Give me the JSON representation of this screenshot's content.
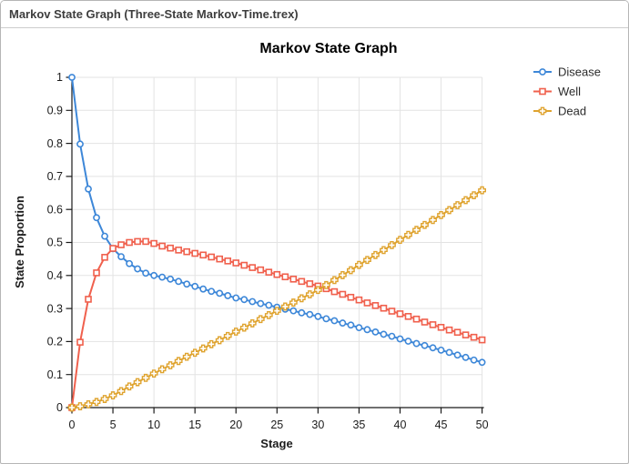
{
  "window": {
    "title": "Markov State Graph (Three-State Markov-Time.trex)"
  },
  "colors": {
    "disease": "#3d87d8",
    "well": "#f0604d",
    "dead": "#dfa32e",
    "grid": "#e3e3e3",
    "axis": "#1a1a1a"
  },
  "chart_data": {
    "type": "line",
    "title": "Markov State Graph",
    "xlabel": "Stage",
    "ylabel": "State Proportion",
    "xlim": [
      0,
      50
    ],
    "ylim": [
      0,
      1
    ],
    "grid": true,
    "legend_position": "right-top",
    "x_ticks": [
      "0",
      "5",
      "10",
      "15",
      "20",
      "25",
      "30",
      "35",
      "40",
      "45",
      "50"
    ],
    "y_ticks": [
      "0",
      "0.1",
      "0.2",
      "0.3",
      "0.4",
      "0.5",
      "0.6",
      "0.7",
      "0.8",
      "0.9",
      "1"
    ],
    "stages": [
      0,
      1,
      2,
      3,
      4,
      5,
      6,
      7,
      8,
      9,
      10,
      11,
      12,
      13,
      14,
      15,
      16,
      17,
      18,
      19,
      20,
      21,
      22,
      23,
      24,
      25,
      26,
      27,
      28,
      29,
      30,
      31,
      32,
      33,
      34,
      35,
      36,
      37,
      38,
      39,
      40,
      41,
      42,
      43,
      44,
      45,
      46,
      47,
      48,
      49,
      50
    ],
    "series": [
      {
        "name": "Disease",
        "color": "#3d87d8",
        "marker": "circle",
        "values": [
          1.0,
          0.798,
          0.662,
          0.575,
          0.519,
          0.481,
          0.457,
          0.436,
          0.42,
          0.407,
          0.4,
          0.395,
          0.389,
          0.382,
          0.374,
          0.367,
          0.359,
          0.352,
          0.346,
          0.339,
          0.332,
          0.327,
          0.321,
          0.315,
          0.31,
          0.304,
          0.298,
          0.293,
          0.287,
          0.282,
          0.276,
          0.269,
          0.263,
          0.256,
          0.25,
          0.242,
          0.236,
          0.229,
          0.222,
          0.216,
          0.208,
          0.201,
          0.194,
          0.188,
          0.181,
          0.174,
          0.167,
          0.159,
          0.152,
          0.144,
          0.137
        ]
      },
      {
        "name": "Well",
        "color": "#f0604d",
        "marker": "square",
        "values": [
          0.0,
          0.198,
          0.328,
          0.408,
          0.455,
          0.482,
          0.493,
          0.5,
          0.503,
          0.503,
          0.497,
          0.489,
          0.483,
          0.477,
          0.472,
          0.467,
          0.462,
          0.456,
          0.45,
          0.444,
          0.438,
          0.431,
          0.424,
          0.417,
          0.41,
          0.403,
          0.396,
          0.389,
          0.382,
          0.375,
          0.368,
          0.36,
          0.351,
          0.343,
          0.334,
          0.326,
          0.317,
          0.309,
          0.301,
          0.292,
          0.284,
          0.276,
          0.268,
          0.259,
          0.251,
          0.243,
          0.235,
          0.228,
          0.22,
          0.213,
          0.205
        ]
      },
      {
        "name": "Dead",
        "color": "#dfa32e",
        "marker": "cross",
        "values": [
          0.0,
          0.004,
          0.01,
          0.017,
          0.026,
          0.037,
          0.05,
          0.064,
          0.077,
          0.09,
          0.103,
          0.116,
          0.128,
          0.141,
          0.154,
          0.166,
          0.179,
          0.192,
          0.204,
          0.217,
          0.23,
          0.242,
          0.255,
          0.268,
          0.28,
          0.293,
          0.306,
          0.318,
          0.331,
          0.343,
          0.356,
          0.371,
          0.386,
          0.401,
          0.416,
          0.432,
          0.447,
          0.462,
          0.477,
          0.492,
          0.508,
          0.523,
          0.538,
          0.553,
          0.568,
          0.583,
          0.598,
          0.613,
          0.628,
          0.643,
          0.658
        ]
      }
    ]
  }
}
